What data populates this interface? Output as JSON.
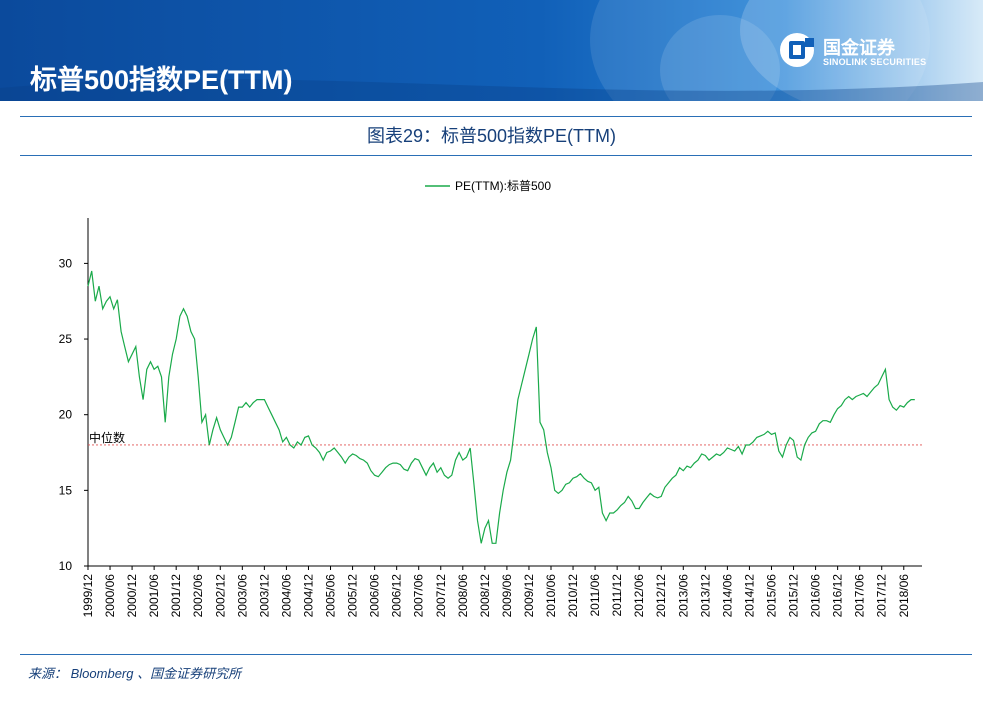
{
  "header": {
    "title": "标普500指数PE(TTM)",
    "logo_cn": "国金证券",
    "logo_en": "SINOLINK SECURITIES"
  },
  "colors": {
    "series": "#1aaa4a",
    "median_line": "#e05050",
    "header_blue": "#0b4a9c",
    "rule_blue": "#2a6fb6",
    "title_text": "#17407a"
  },
  "chart_title": "图表29：标普500指数PE(TTM)",
  "source": "来源： Bloomberg 、国金证券研究所",
  "chart_data": {
    "type": "line",
    "legend": {
      "label": "PE(TTM):标普500",
      "placement": "top-center"
    },
    "ylim": [
      10,
      33
    ],
    "yticks": [
      10,
      15,
      20,
      25,
      30
    ],
    "xlim": [
      1999.917,
      2018.83
    ],
    "xticks": [
      "1999/12",
      "2000/06",
      "2000/12",
      "2001/06",
      "2001/12",
      "2002/06",
      "2002/12",
      "2003/06",
      "2003/12",
      "2004/06",
      "2004/12",
      "2005/06",
      "2005/12",
      "2006/06",
      "2006/12",
      "2007/06",
      "2007/12",
      "2008/06",
      "2008/12",
      "2009/06",
      "2009/12",
      "2010/06",
      "2010/12",
      "2011/06",
      "2011/12",
      "2012/06",
      "2012/12",
      "2013/06",
      "2013/12",
      "2014/06",
      "2014/12",
      "2015/06",
      "2015/12",
      "2016/06",
      "2016/12",
      "2017/06",
      "2017/12",
      "2018/06"
    ],
    "median": {
      "label": "中位数",
      "value": 18.0
    },
    "grid": false,
    "series": [
      {
        "name": "PE(TTM):标普500",
        "points": [
          [
            "1999/12",
            28.5
          ],
          [
            "2000/01",
            29.5
          ],
          [
            "2000/02",
            27.5
          ],
          [
            "2000/03",
            28.5
          ],
          [
            "2000/04",
            27.0
          ],
          [
            "2000/05",
            27.5
          ],
          [
            "2000/06",
            27.8
          ],
          [
            "2000/07",
            27.0
          ],
          [
            "2000/08",
            27.6
          ],
          [
            "2000/09",
            25.5
          ],
          [
            "2000/10",
            24.5
          ],
          [
            "2000/11",
            23.5
          ],
          [
            "2000/12",
            24.0
          ],
          [
            "2001/01",
            24.5
          ],
          [
            "2001/02",
            22.5
          ],
          [
            "2001/03",
            21.0
          ],
          [
            "2001/04",
            23.0
          ],
          [
            "2001/05",
            23.5
          ],
          [
            "2001/06",
            23.0
          ],
          [
            "2001/07",
            23.2
          ],
          [
            "2001/08",
            22.5
          ],
          [
            "2001/09",
            19.5
          ],
          [
            "2001/10",
            22.5
          ],
          [
            "2001/11",
            24.0
          ],
          [
            "2001/12",
            25.0
          ],
          [
            "2002/01",
            26.5
          ],
          [
            "2002/02",
            27.0
          ],
          [
            "2002/03",
            26.5
          ],
          [
            "2002/04",
            25.5
          ],
          [
            "2002/05",
            25.0
          ],
          [
            "2002/06",
            22.5
          ],
          [
            "2002/07",
            19.5
          ],
          [
            "2002/08",
            20.0
          ],
          [
            "2002/09",
            18.0
          ],
          [
            "2002/10",
            19.0
          ],
          [
            "2002/11",
            19.8
          ],
          [
            "2002/12",
            19.0
          ],
          [
            "2003/01",
            18.5
          ],
          [
            "2003/02",
            18.0
          ],
          [
            "2003/03",
            18.5
          ],
          [
            "2003/04",
            19.5
          ],
          [
            "2003/05",
            20.5
          ],
          [
            "2003/06",
            20.5
          ],
          [
            "2003/07",
            20.8
          ],
          [
            "2003/08",
            20.5
          ],
          [
            "2003/09",
            20.8
          ],
          [
            "2003/10",
            21.0
          ],
          [
            "2003/11",
            21.0
          ],
          [
            "2003/12",
            21.0
          ],
          [
            "2004/01",
            20.5
          ],
          [
            "2004/02",
            20.0
          ],
          [
            "2004/03",
            19.5
          ],
          [
            "2004/04",
            19.0
          ],
          [
            "2004/05",
            18.2
          ],
          [
            "2004/06",
            18.5
          ],
          [
            "2004/07",
            18.0
          ],
          [
            "2004/08",
            17.8
          ],
          [
            "2004/09",
            18.2
          ],
          [
            "2004/10",
            18.0
          ],
          [
            "2004/11",
            18.5
          ],
          [
            "2004/12",
            18.6
          ],
          [
            "2005/01",
            18.0
          ],
          [
            "2005/02",
            17.8
          ],
          [
            "2005/03",
            17.5
          ],
          [
            "2005/04",
            17.0
          ],
          [
            "2005/05",
            17.5
          ],
          [
            "2005/06",
            17.6
          ],
          [
            "2005/07",
            17.8
          ],
          [
            "2005/08",
            17.5
          ],
          [
            "2005/09",
            17.2
          ],
          [
            "2005/10",
            16.8
          ],
          [
            "2005/11",
            17.2
          ],
          [
            "2005/12",
            17.4
          ],
          [
            "2006/01",
            17.3
          ],
          [
            "2006/02",
            17.1
          ],
          [
            "2006/03",
            17.0
          ],
          [
            "2006/04",
            16.8
          ],
          [
            "2006/05",
            16.3
          ],
          [
            "2006/06",
            16.0
          ],
          [
            "2006/07",
            15.9
          ],
          [
            "2006/08",
            16.2
          ],
          [
            "2006/09",
            16.5
          ],
          [
            "2006/10",
            16.7
          ],
          [
            "2006/11",
            16.8
          ],
          [
            "2006/12",
            16.8
          ],
          [
            "2007/01",
            16.7
          ],
          [
            "2007/02",
            16.4
          ],
          [
            "2007/03",
            16.3
          ],
          [
            "2007/04",
            16.8
          ],
          [
            "2007/05",
            17.1
          ],
          [
            "2007/06",
            17.0
          ],
          [
            "2007/07",
            16.5
          ],
          [
            "2007/08",
            16.0
          ],
          [
            "2007/09",
            16.5
          ],
          [
            "2007/10",
            16.8
          ],
          [
            "2007/11",
            16.2
          ],
          [
            "2007/12",
            16.5
          ],
          [
            "2008/01",
            16.0
          ],
          [
            "2008/02",
            15.8
          ],
          [
            "2008/03",
            16.0
          ],
          [
            "2008/04",
            17.0
          ],
          [
            "2008/05",
            17.5
          ],
          [
            "2008/06",
            17.0
          ],
          [
            "2008/07",
            17.2
          ],
          [
            "2008/08",
            17.8
          ],
          [
            "2008/09",
            15.5
          ],
          [
            "2008/10",
            13.0
          ],
          [
            "2008/11",
            11.5
          ],
          [
            "2008/12",
            12.5
          ],
          [
            "2009/01",
            13.0
          ],
          [
            "2009/02",
            11.5
          ],
          [
            "2009/03",
            11.5
          ],
          [
            "2009/04",
            13.5
          ],
          [
            "2009/05",
            15.0
          ],
          [
            "2009/06",
            16.2
          ],
          [
            "2009/07",
            17.0
          ],
          [
            "2009/08",
            19.0
          ],
          [
            "2009/09",
            21.0
          ],
          [
            "2009/10",
            22.0
          ],
          [
            "2009/11",
            23.0
          ],
          [
            "2009/12",
            24.0
          ],
          [
            "2010/01",
            25.0
          ],
          [
            "2010/02",
            25.8
          ],
          [
            "2010/03",
            19.5
          ],
          [
            "2010/04",
            19.0
          ],
          [
            "2010/05",
            17.5
          ],
          [
            "2010/06",
            16.5
          ],
          [
            "2010/07",
            15.0
          ],
          [
            "2010/08",
            14.8
          ],
          [
            "2010/09",
            15.0
          ],
          [
            "2010/10",
            15.4
          ],
          [
            "2010/11",
            15.5
          ],
          [
            "2010/12",
            15.8
          ],
          [
            "2011/01",
            15.9
          ],
          [
            "2011/02",
            16.1
          ],
          [
            "2011/03",
            15.8
          ],
          [
            "2011/04",
            15.6
          ],
          [
            "2011/05",
            15.5
          ],
          [
            "2011/06",
            15.0
          ],
          [
            "2011/07",
            15.2
          ],
          [
            "2011/08",
            13.5
          ],
          [
            "2011/09",
            13.0
          ],
          [
            "2011/10",
            13.5
          ],
          [
            "2011/11",
            13.5
          ],
          [
            "2011/12",
            13.7
          ],
          [
            "2012/01",
            14.0
          ],
          [
            "2012/02",
            14.2
          ],
          [
            "2012/03",
            14.6
          ],
          [
            "2012/04",
            14.3
          ],
          [
            "2012/05",
            13.8
          ],
          [
            "2012/06",
            13.8
          ],
          [
            "2012/07",
            14.2
          ],
          [
            "2012/08",
            14.5
          ],
          [
            "2012/09",
            14.8
          ],
          [
            "2012/10",
            14.6
          ],
          [
            "2012/11",
            14.5
          ],
          [
            "2012/12",
            14.6
          ],
          [
            "2013/01",
            15.2
          ],
          [
            "2013/02",
            15.5
          ],
          [
            "2013/03",
            15.8
          ],
          [
            "2013/04",
            16.0
          ],
          [
            "2013/05",
            16.5
          ],
          [
            "2013/06",
            16.3
          ],
          [
            "2013/07",
            16.6
          ],
          [
            "2013/08",
            16.5
          ],
          [
            "2013/09",
            16.8
          ],
          [
            "2013/10",
            17.0
          ],
          [
            "2013/11",
            17.4
          ],
          [
            "2013/12",
            17.3
          ],
          [
            "2014/01",
            17.0
          ],
          [
            "2014/02",
            17.2
          ],
          [
            "2014/03",
            17.4
          ],
          [
            "2014/04",
            17.3
          ],
          [
            "2014/05",
            17.5
          ],
          [
            "2014/06",
            17.8
          ],
          [
            "2014/07",
            17.7
          ],
          [
            "2014/08",
            17.6
          ],
          [
            "2014/09",
            17.9
          ],
          [
            "2014/10",
            17.4
          ],
          [
            "2014/11",
            18.0
          ],
          [
            "2014/12",
            18.0
          ],
          [
            "2015/01",
            18.2
          ],
          [
            "2015/02",
            18.5
          ],
          [
            "2015/03",
            18.6
          ],
          [
            "2015/04",
            18.7
          ],
          [
            "2015/05",
            18.9
          ],
          [
            "2015/06",
            18.7
          ],
          [
            "2015/07",
            18.8
          ],
          [
            "2015/08",
            17.6
          ],
          [
            "2015/09",
            17.2
          ],
          [
            "2015/10",
            18.0
          ],
          [
            "2015/11",
            18.5
          ],
          [
            "2015/12",
            18.3
          ],
          [
            "2016/01",
            17.2
          ],
          [
            "2016/02",
            17.0
          ],
          [
            "2016/03",
            18.0
          ],
          [
            "2016/04",
            18.5
          ],
          [
            "2016/05",
            18.8
          ],
          [
            "2016/06",
            18.9
          ],
          [
            "2016/07",
            19.4
          ],
          [
            "2016/08",
            19.6
          ],
          [
            "2016/09",
            19.6
          ],
          [
            "2016/10",
            19.5
          ],
          [
            "2016/11",
            20.0
          ],
          [
            "2016/12",
            20.4
          ],
          [
            "2017/01",
            20.6
          ],
          [
            "2017/02",
            21.0
          ],
          [
            "2017/03",
            21.2
          ],
          [
            "2017/04",
            21.0
          ],
          [
            "2017/05",
            21.2
          ],
          [
            "2017/06",
            21.3
          ],
          [
            "2017/07",
            21.4
          ],
          [
            "2017/08",
            21.2
          ],
          [
            "2017/09",
            21.5
          ],
          [
            "2017/10",
            21.8
          ],
          [
            "2017/11",
            22.0
          ],
          [
            "2017/12",
            22.5
          ],
          [
            "2018/01",
            23.0
          ],
          [
            "2018/02",
            21.0
          ],
          [
            "2018/03",
            20.5
          ],
          [
            "2018/04",
            20.3
          ],
          [
            "2018/05",
            20.6
          ],
          [
            "2018/06",
            20.5
          ],
          [
            "2018/07",
            20.8
          ],
          [
            "2018/08",
            21.0
          ],
          [
            "2018/09",
            21.0
          ]
        ]
      }
    ]
  }
}
